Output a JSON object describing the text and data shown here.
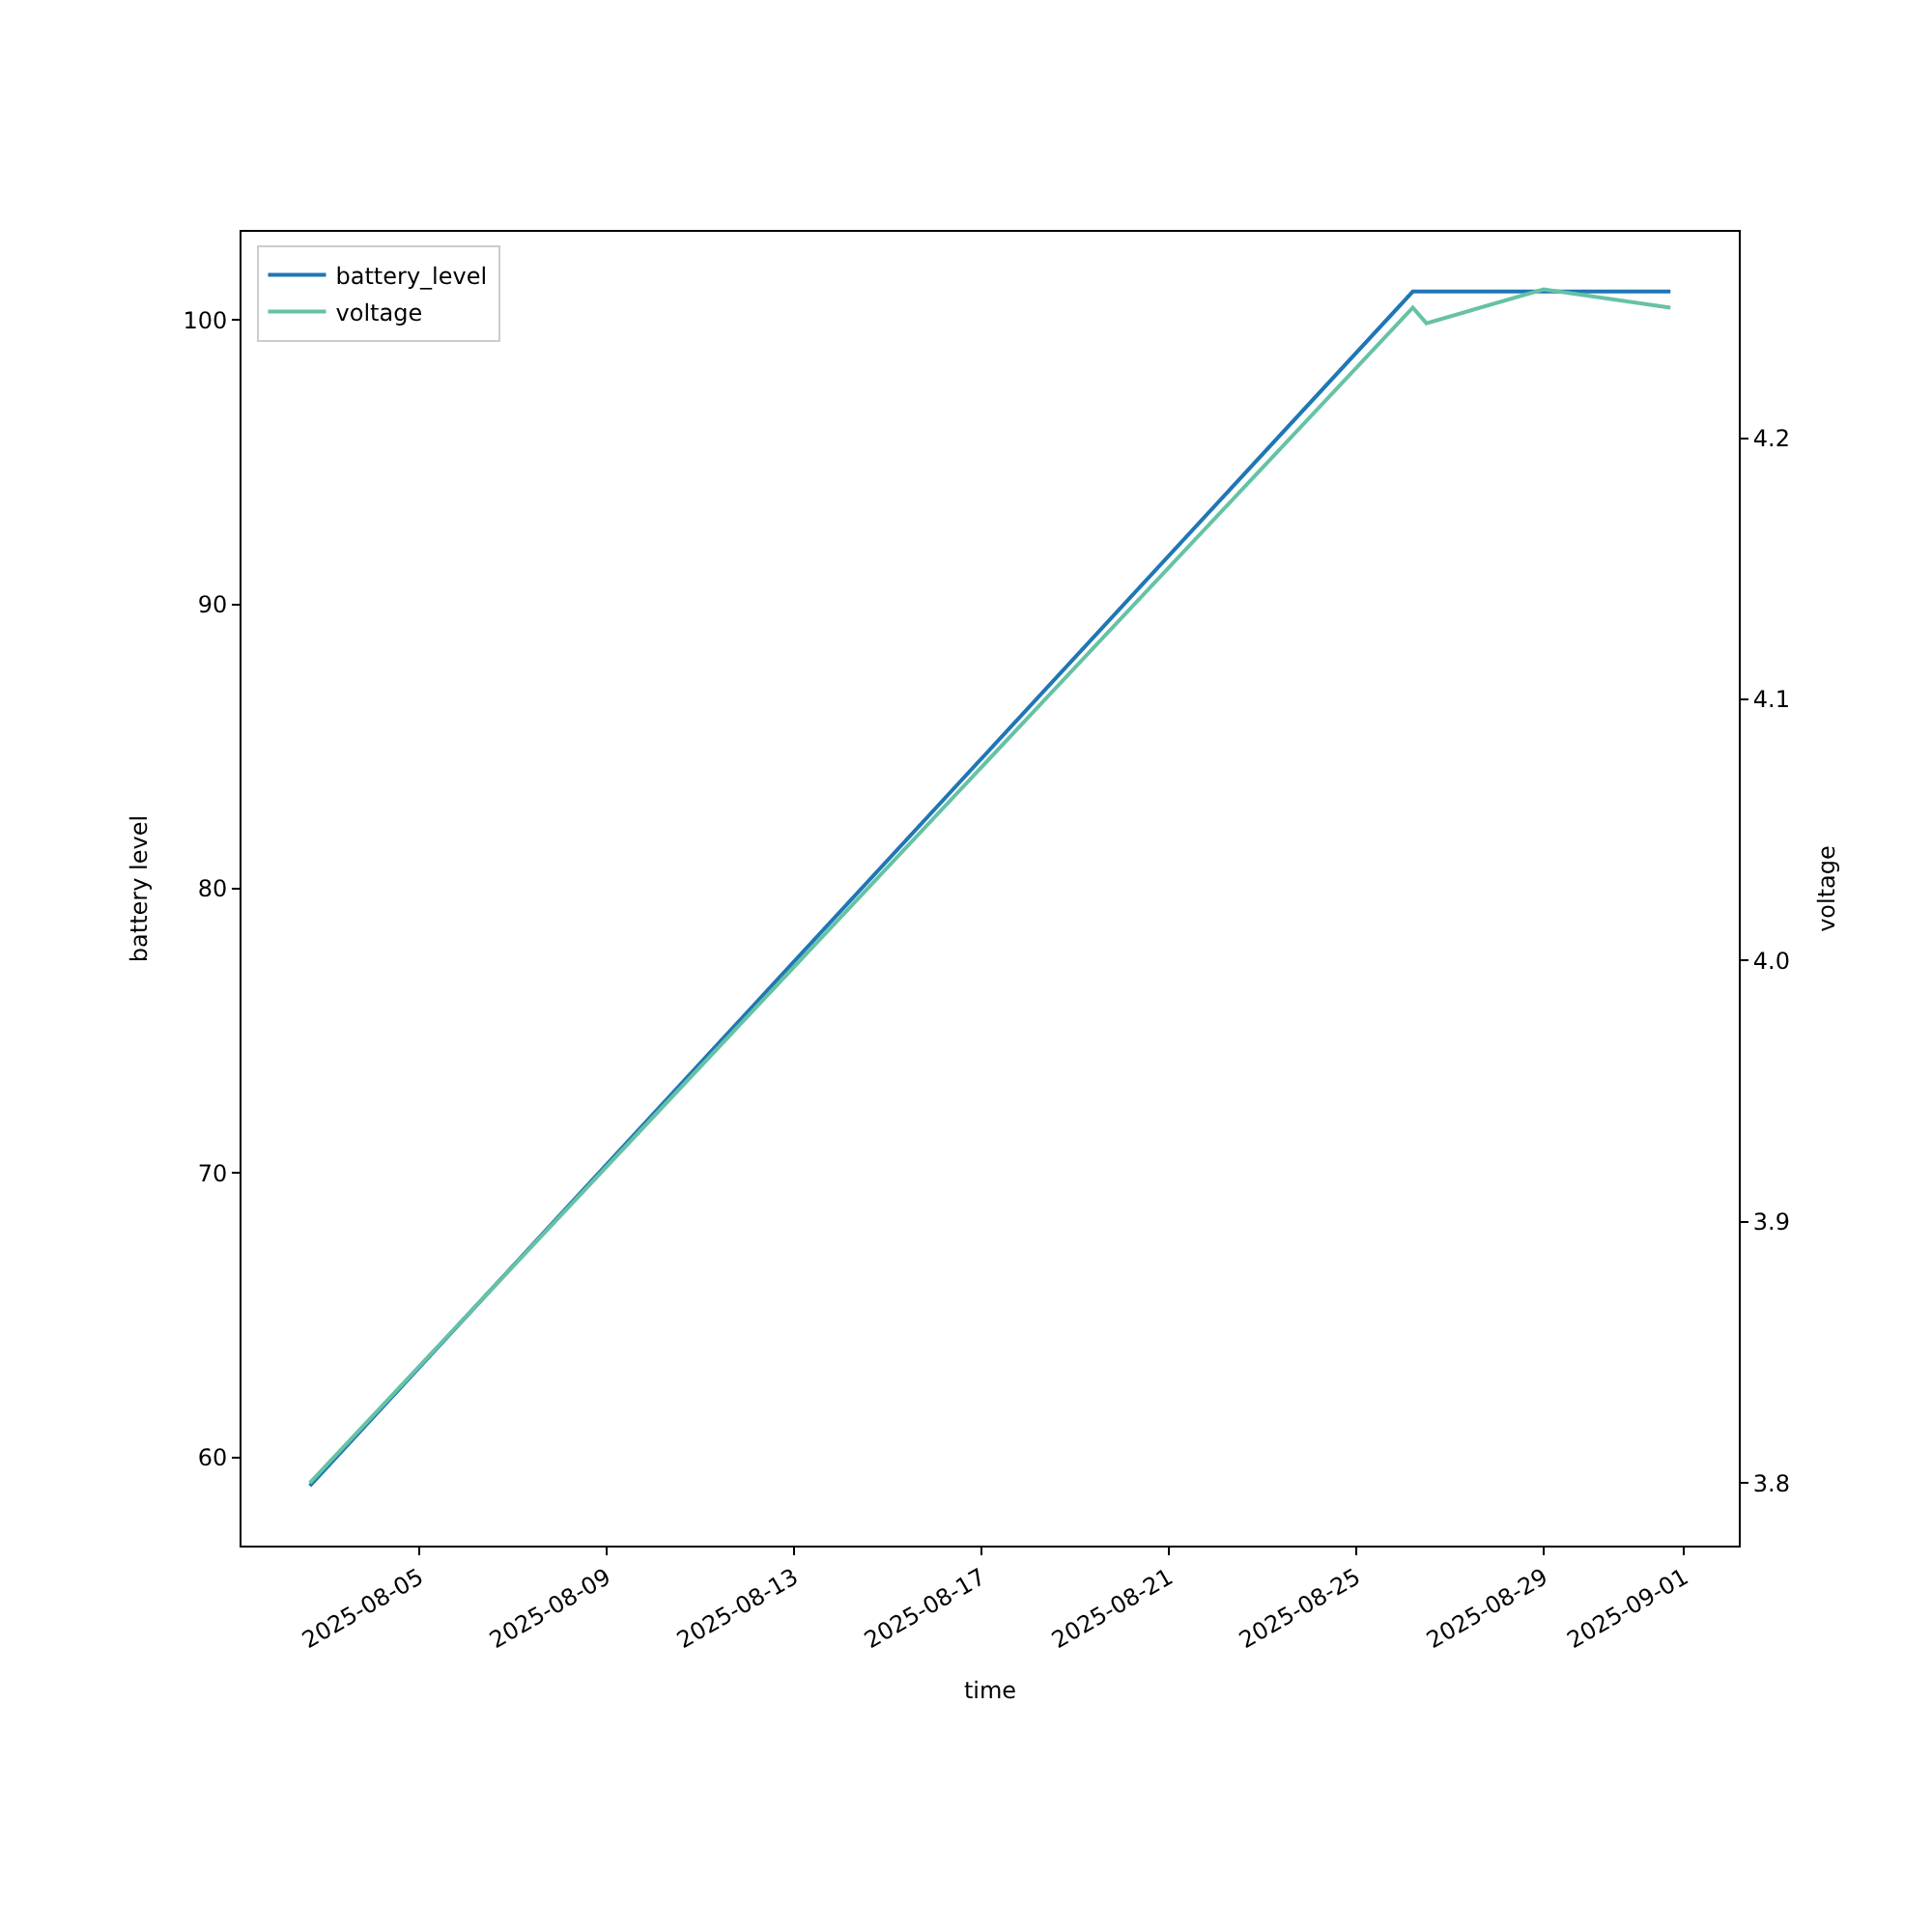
{
  "chart_data": {
    "type": "line",
    "xlabel": "time",
    "ylabel": "battery level",
    "y2label": "voltage",
    "x": [
      "2025-08-02T16:00",
      "2025-08-26T05:00",
      "2025-08-26T12:00",
      "2025-08-29T00:00",
      "2025-08-31T17:00"
    ],
    "series": [
      {
        "name": "battery_level",
        "color": "#1f77b4",
        "values": [
          59,
          101,
          101,
          101,
          101
        ]
      },
      {
        "name": "voltage",
        "color": "#66c2a5",
        "axis": "y2",
        "values": [
          3.8,
          4.25,
          4.244,
          4.257,
          4.25
        ]
      }
    ],
    "xlim": [
      "2025-08-01T05:00",
      "2025-09-02T04:00"
    ],
    "xticks": [
      {
        "value": "2025-08-05",
        "label": "2025-08-05"
      },
      {
        "value": "2025-08-09",
        "label": "2025-08-09"
      },
      {
        "value": "2025-08-13",
        "label": "2025-08-13"
      },
      {
        "value": "2025-08-17",
        "label": "2025-08-17"
      },
      {
        "value": "2025-08-21",
        "label": "2025-08-21"
      },
      {
        "value": "2025-08-25",
        "label": "2025-08-25"
      },
      {
        "value": "2025-08-29",
        "label": "2025-08-29"
      },
      {
        "value": "2025-09-01",
        "label": "2025-09-01"
      }
    ],
    "ylim": [
      56.9,
      103.1
    ],
    "yticks": [
      60,
      70,
      80,
      90,
      100
    ],
    "y2lim": [
      3.776,
      4.279
    ],
    "y2ticks": [
      3.8,
      3.9,
      {
        "value": 4.0,
        "label": "4.0"
      },
      4.1,
      4.2
    ],
    "legend": "top left",
    "marker": "none",
    "line_style": "solid"
  }
}
